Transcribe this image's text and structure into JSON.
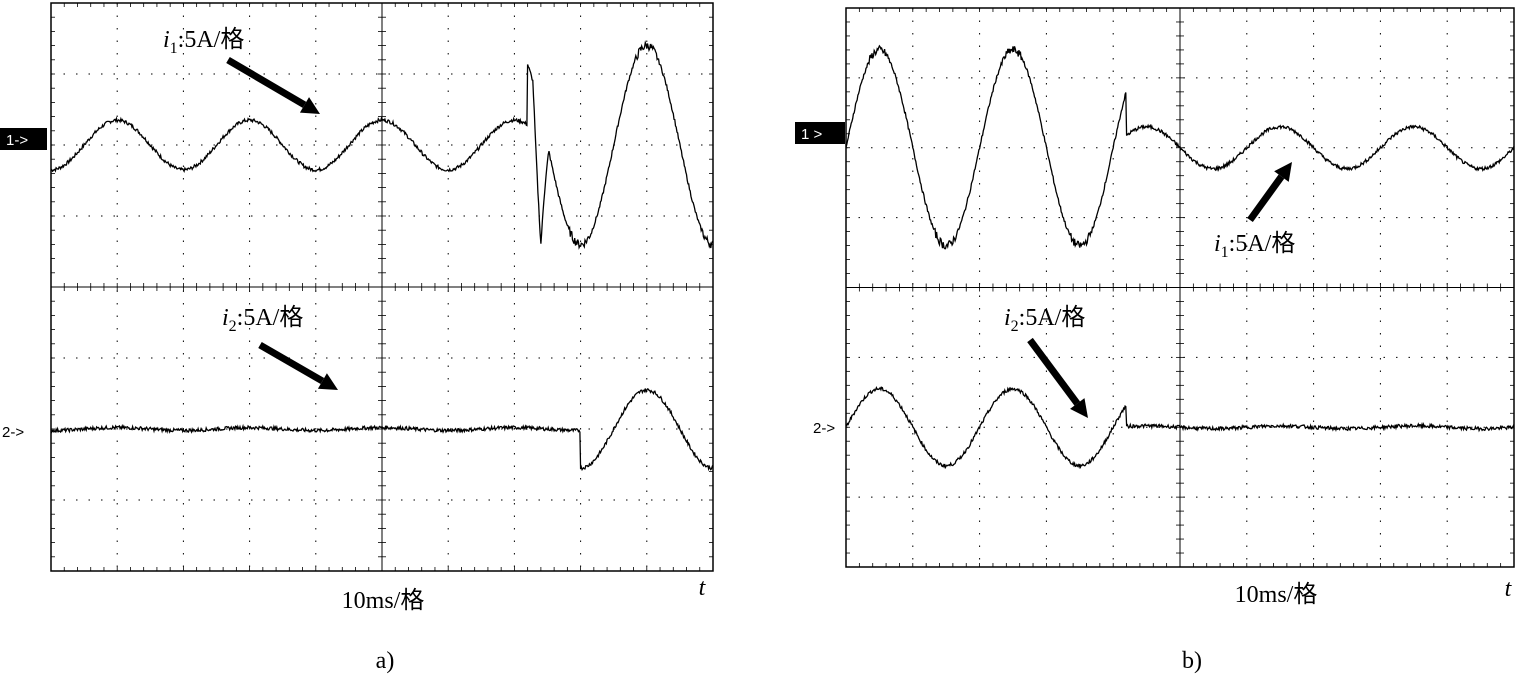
{
  "chart_data": [
    {
      "type": "line",
      "panel_label": "a)",
      "x_axis": {
        "label": "t",
        "scale_label": "10ms/格",
        "divisions": 10,
        "range_ms": [
          0,
          100
        ]
      },
      "y_axis": {
        "divisions": 8,
        "grid": "dotted"
      },
      "channels": [
        {
          "marker": "1->",
          "annotation": {
            "symbol": "i",
            "sub": "1",
            "text": ":5A/格"
          },
          "unit_per_div": 5,
          "baseline_div": 2,
          "segments": [
            {
              "t_start_ms": 0,
              "t_end_ms": 72,
              "amplitude_div": 0.35,
              "period_ms": 20,
              "phase_ms": 5
            },
            {
              "t_start_ms": 72,
              "t_end_ms": 100,
              "amplitude_div": 1.4,
              "period_ms": 20,
              "phase_ms": 5
            }
          ],
          "transient": {
            "t_ms": 74,
            "min_div": -1.4
          }
        },
        {
          "marker": "2->",
          "annotation": {
            "symbol": "i",
            "sub": "2",
            "text": ":5A/格"
          },
          "unit_per_div": 5,
          "baseline_div": -2,
          "segments": [
            {
              "t_start_ms": 0,
              "t_end_ms": 80,
              "amplitude_div": 0.02,
              "period_ms": 20,
              "phase_ms": 5
            },
            {
              "t_start_ms": 80,
              "t_end_ms": 100,
              "amplitude_div": 0.55,
              "period_ms": 20,
              "phase_ms": 5
            }
          ]
        }
      ]
    },
    {
      "type": "line",
      "panel_label": "b)",
      "x_axis": {
        "label": "t",
        "scale_label": "10ms/格",
        "divisions": 10,
        "range_ms": [
          0,
          100
        ]
      },
      "y_axis": {
        "divisions": 8,
        "grid": "dotted"
      },
      "channels": [
        {
          "marker": "1 >",
          "annotation": {
            "symbol": "i",
            "sub": "1",
            "text": ":5A/格"
          },
          "unit_per_div": 5,
          "baseline_div": 2,
          "segments": [
            {
              "t_start_ms": 0,
              "t_end_ms": 42,
              "amplitude_div": 1.4,
              "period_ms": 20,
              "phase_ms": 0
            },
            {
              "t_start_ms": 42,
              "t_end_ms": 100,
              "amplitude_div": 0.3,
              "period_ms": 20,
              "phase_ms": 0
            }
          ]
        },
        {
          "marker": "2->",
          "annotation": {
            "symbol": "i",
            "sub": "2",
            "text": ":5A/格"
          },
          "unit_per_div": 5,
          "baseline_div": -2,
          "segments": [
            {
              "t_start_ms": 0,
              "t_end_ms": 42,
              "amplitude_div": 0.55,
              "period_ms": 20,
              "phase_ms": 0
            },
            {
              "t_start_ms": 42,
              "t_end_ms": 100,
              "amplitude_div": 0.02,
              "period_ms": 20,
              "phase_ms": 0
            }
          ]
        }
      ]
    }
  ]
}
